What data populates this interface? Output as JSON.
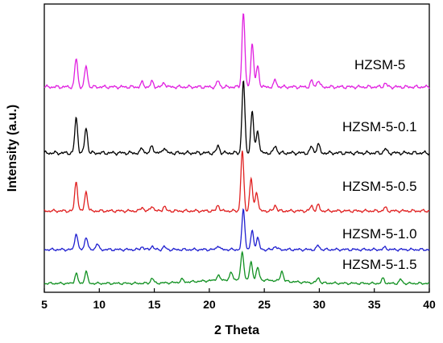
{
  "chart_data": {
    "type": "line",
    "title": "",
    "xlabel": "2 Theta",
    "ylabel": "Intensity (a.u.)",
    "xlim": [
      5,
      40
    ],
    "x_ticks": [
      5,
      10,
      15,
      20,
      25,
      30,
      35,
      40
    ],
    "y_ticks_shown": false,
    "grid": false,
    "legend": "inline labels to the right of each curve",
    "series": [
      {
        "name": "HZSM-5",
        "color": "#e020e0",
        "peaks": [
          [
            7.9,
            0.38
          ],
          [
            8.8,
            0.28
          ],
          [
            13.9,
            0.06
          ],
          [
            14.8,
            0.07
          ],
          [
            15.9,
            0.06
          ],
          [
            20.8,
            0.08
          ],
          [
            23.1,
            1.0
          ],
          [
            23.9,
            0.58
          ],
          [
            24.4,
            0.28
          ],
          [
            26.0,
            0.09
          ],
          [
            29.3,
            0.08
          ],
          [
            29.9,
            0.09
          ],
          [
            36.0,
            0.05
          ]
        ]
      },
      {
        "name": "HZSM-5-0.1",
        "color": "#000000",
        "peaks": [
          [
            7.9,
            0.43
          ],
          [
            8.8,
            0.31
          ],
          [
            13.9,
            0.06
          ],
          [
            14.8,
            0.09
          ],
          [
            15.9,
            0.07
          ],
          [
            20.8,
            0.09
          ],
          [
            23.1,
            0.89
          ],
          [
            23.9,
            0.51
          ],
          [
            24.4,
            0.28
          ],
          [
            26.0,
            0.09
          ],
          [
            29.3,
            0.08
          ],
          [
            29.9,
            0.11
          ],
          [
            36.0,
            0.05
          ]
        ]
      },
      {
        "name": "HZSM-5-0.5",
        "color": "#e02020",
        "peaks": [
          [
            7.9,
            0.46
          ],
          [
            8.8,
            0.3
          ],
          [
            13.9,
            0.06
          ],
          [
            14.8,
            0.08
          ],
          [
            15.9,
            0.07
          ],
          [
            20.8,
            0.09
          ],
          [
            23.0,
            0.92
          ],
          [
            23.8,
            0.5
          ],
          [
            24.3,
            0.3
          ],
          [
            26.0,
            0.09
          ],
          [
            29.3,
            0.08
          ],
          [
            29.9,
            0.09
          ],
          [
            36.0,
            0.05
          ]
        ]
      },
      {
        "name": "HZSM-5-1.0",
        "color": "#2020d0",
        "peaks": [
          [
            7.9,
            0.28
          ],
          [
            8.8,
            0.22
          ],
          [
            9.8,
            0.1
          ],
          [
            13.9,
            0.05
          ],
          [
            14.8,
            0.06
          ],
          [
            15.9,
            0.05
          ],
          [
            20.8,
            0.07
          ],
          [
            23.1,
            0.68
          ],
          [
            23.9,
            0.31
          ],
          [
            24.4,
            0.2
          ],
          [
            26.0,
            0.06
          ],
          [
            29.9,
            0.07
          ],
          [
            36.0,
            0.04
          ]
        ]
      },
      {
        "name": "HZSM-5-1.5",
        "color": "#109020",
        "peaks": [
          [
            7.9,
            0.2
          ],
          [
            8.8,
            0.24
          ],
          [
            14.8,
            0.1
          ],
          [
            17.5,
            0.06
          ],
          [
            20.8,
            0.1
          ],
          [
            22.0,
            0.14
          ],
          [
            23.0,
            0.55
          ],
          [
            23.8,
            0.34
          ],
          [
            24.4,
            0.24
          ],
          [
            26.6,
            0.2
          ],
          [
            29.9,
            0.1
          ],
          [
            35.8,
            0.1
          ],
          [
            37.4,
            0.08
          ]
        ]
      }
    ]
  }
}
